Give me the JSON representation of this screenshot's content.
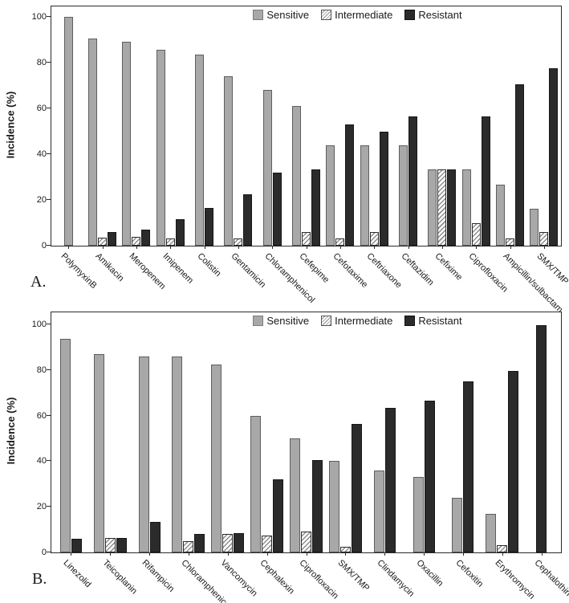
{
  "figure": {
    "panel_a_letter": "A.",
    "panel_b_letter": "B."
  },
  "colors": {
    "sensitive": "#a8a8a8",
    "intermediate_hatch_line": "#8c8c8c",
    "intermediate_bg": "#ffffff",
    "resistant": "#2b2b2b",
    "axis": "#2b2b2b"
  },
  "chart_data": [
    {
      "panel": "A",
      "type": "bar",
      "title": "",
      "xlabel": "",
      "ylabel": "Incidence (%)",
      "ylim": [
        0,
        100
      ],
      "yticks": [
        0,
        20,
        40,
        60,
        80,
        100
      ],
      "grid": false,
      "legend_position": "top-inside",
      "categories": [
        "PolymyxinB",
        "Amikacin",
        "Meropenem",
        "Imipenem",
        "Colistin",
        "Gentamicin",
        "Chloramphenicol",
        "Cefepime",
        "Cefotaxime",
        "Ceftriaxone",
        "Ceftazidim",
        "Cefixime",
        "Ciprofloxacin",
        "Ampicillin/sulbactam",
        "SMX/TMP"
      ],
      "series": [
        {
          "name": "Sensitive",
          "values": [
            100,
            90.5,
            89,
            85.5,
            83.5,
            74,
            68,
            61,
            44,
            44,
            44,
            33.5,
            33.5,
            26.5,
            16
          ]
        },
        {
          "name": "Intermediate",
          "values": [
            0,
            3.5,
            4,
            3,
            0,
            3,
            0,
            6,
            3,
            6,
            0,
            33.5,
            10,
            3,
            6
          ]
        },
        {
          "name": "Resistant",
          "values": [
            0,
            6,
            7,
            11.5,
            16.5,
            22.5,
            32,
            33.5,
            53,
            50,
            56.5,
            33.5,
            56.5,
            70.5,
            77.5
          ]
        }
      ]
    },
    {
      "panel": "B",
      "type": "bar",
      "title": "",
      "xlabel": "",
      "ylabel": "Incidence (%)",
      "ylim": [
        0,
        100
      ],
      "yticks": [
        0,
        20,
        40,
        60,
        80,
        100
      ],
      "grid": false,
      "legend_position": "top-inside",
      "categories": [
        "Linezolid",
        "Teicoplanin",
        "Rifampicin",
        "Chloramphenicol",
        "Vancomycin",
        "Cephalexin",
        "Ciprofloxacin",
        "SMX/TMP",
        "Clindamycin",
        "Oxacillin",
        "Cefoxitin",
        "Erythromycin",
        "Cephalothin"
      ],
      "series": [
        {
          "name": "Sensitive",
          "values": [
            93.5,
            87,
            86,
            86,
            82.5,
            60,
            50,
            40,
            36,
            33,
            24,
            17,
            0
          ]
        },
        {
          "name": "Intermediate",
          "values": [
            0,
            6.5,
            0,
            5,
            8,
            7.5,
            9,
            2.5,
            0,
            0,
            0,
            3,
            0
          ]
        },
        {
          "name": "Resistant",
          "values": [
            6,
            6.5,
            13.5,
            8,
            8.5,
            32,
            40.5,
            56.5,
            63.5,
            66.5,
            75,
            79.5,
            99.5
          ]
        }
      ]
    }
  ]
}
